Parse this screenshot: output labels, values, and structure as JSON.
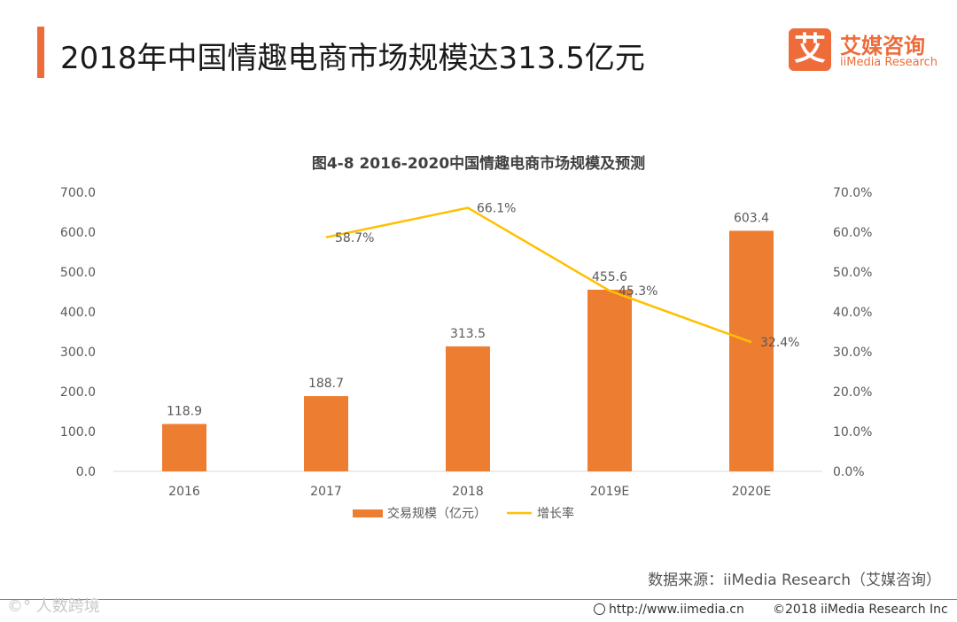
{
  "header": {
    "title": "2018年中国情趣电商市场规模达313.5亿元"
  },
  "logo": {
    "badge_char": "艾",
    "name_cn": "艾媒咨询",
    "name_en": "iiMedia Research"
  },
  "colors": {
    "accent": "#ee6c3a",
    "bar": "#ed7d31",
    "line": "#ffc000"
  },
  "chart_data": {
    "type": "bar",
    "title": "图4-8 2016-2020中国情趣电商市场规模及预测",
    "categories": [
      "2016",
      "2017",
      "2018",
      "2019E",
      "2020E"
    ],
    "series": [
      {
        "name": "交易规模（亿元）",
        "type": "bar",
        "axis": "left",
        "values": [
          118.9,
          188.7,
          313.5,
          455.6,
          603.4
        ],
        "labels": [
          "118.9",
          "188.7",
          "313.5",
          "455.6",
          "603.4"
        ]
      },
      {
        "name": "增长率",
        "type": "line",
        "axis": "right",
        "values": [
          null,
          58.7,
          66.1,
          45.3,
          32.4
        ],
        "labels": [
          "",
          "58.7%",
          "66.1%",
          "45.3%",
          "32.4%"
        ]
      }
    ],
    "y_left": {
      "min": 0,
      "max": 700,
      "ticks": [
        "0.0",
        "100.0",
        "200.0",
        "300.0",
        "400.0",
        "500.0",
        "600.0",
        "700.0"
      ]
    },
    "y_right": {
      "min": 0,
      "max": 70,
      "ticks": [
        "0.0%",
        "10.0%",
        "20.0%",
        "30.0%",
        "40.0%",
        "50.0%",
        "60.0%",
        "70.0%"
      ]
    },
    "legend_position": "bottom"
  },
  "footer": {
    "source": "数据来源：iiMedia Research（艾媒咨询）",
    "watermark": "©° 人数跨境",
    "url": "http://www.iimedia.cn",
    "copyright": "©2018  iiMedia Research  Inc"
  }
}
